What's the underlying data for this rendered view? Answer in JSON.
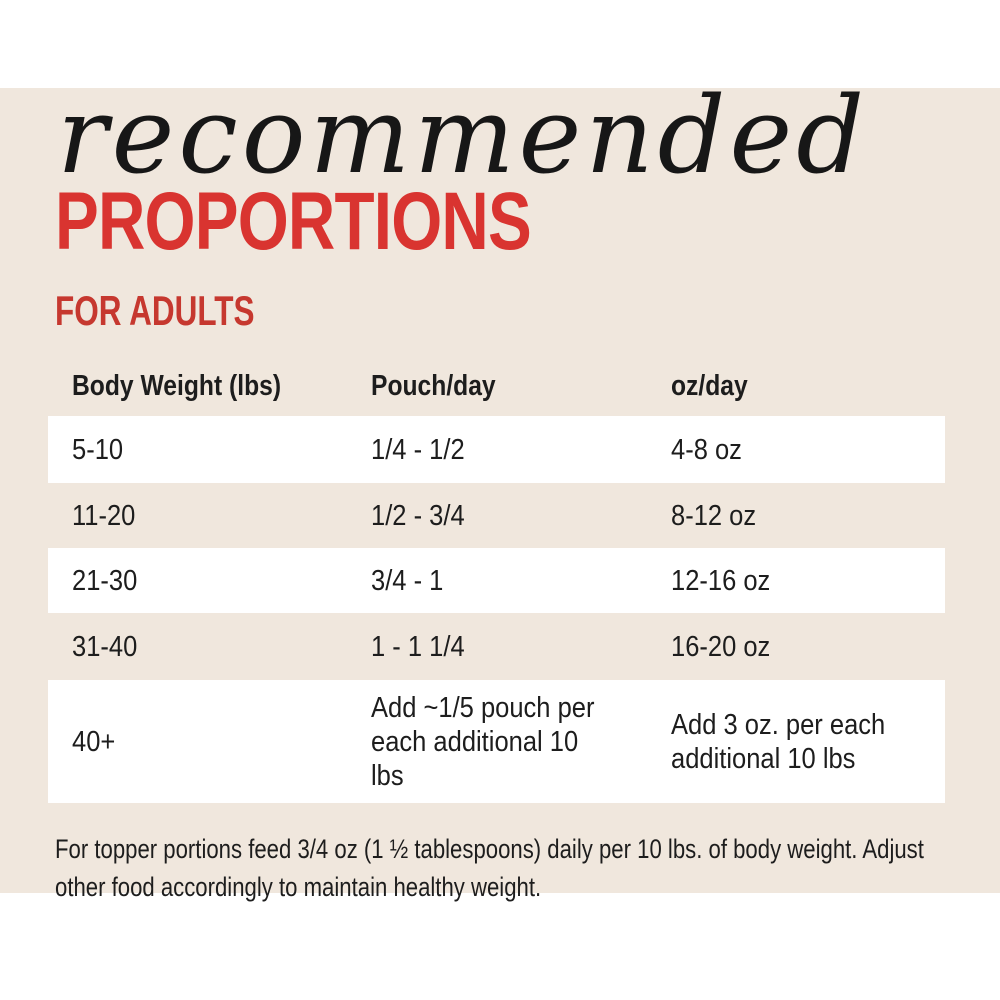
{
  "page": {
    "background": "#ffffff",
    "panel_color": "#f0e7dd"
  },
  "header": {
    "script_title": "recommended",
    "main_title": "PROPORTIONS",
    "subtitle": "FOR ADULTS",
    "script_color": "#171717",
    "title_color": "#d93430",
    "subtitle_color": "#c6382f"
  },
  "table": {
    "columns": [
      "Body Weight (lbs)",
      "Pouch/day",
      "oz/day"
    ],
    "rows": [
      [
        "5-10",
        "1/4 - 1/2",
        "4-8 oz"
      ],
      [
        "11-20",
        "1/2 - 3/4",
        "8-12 oz"
      ],
      [
        "21-30",
        "3/4 - 1",
        "12-16 oz"
      ],
      [
        "31-40",
        "1 - 1 1/4",
        "16-20 oz"
      ],
      [
        "40+",
        "Add ~1/5 pouch per\neach additional 10\nlbs",
        "Add 3 oz. per each\nadditional 10 lbs"
      ]
    ],
    "stripe_color": "#ffffff",
    "text_color": "#1d1d1d"
  },
  "footnote": "For topper portions feed 3/4 oz (1 ½ tablespoons) daily per 10 lbs. of body weight. Adjust\nother food accordingly to maintain healthy weight."
}
